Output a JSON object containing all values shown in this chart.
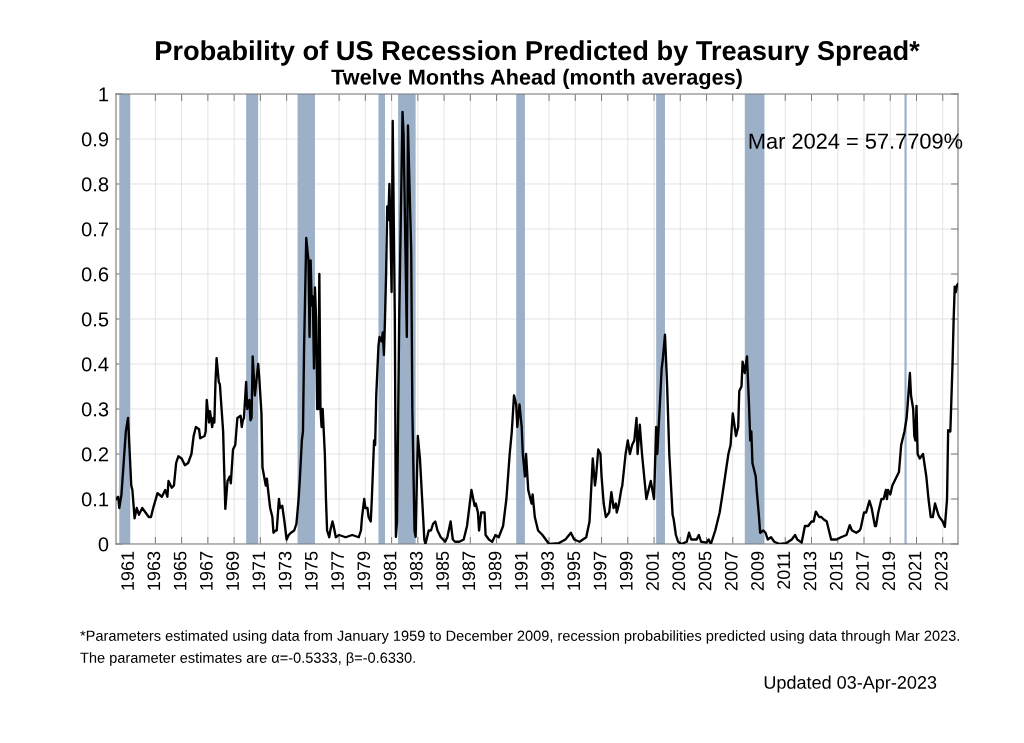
{
  "chart_data": {
    "type": "line",
    "title": "Probability of US Recession Predicted by Treasury Spread*",
    "subtitle": "Twelve Months Ahead (month averages)",
    "color": "#000000",
    "line_style": "solid",
    "grid": true,
    "xlim": [
      "1960-01",
      "2024-03"
    ],
    "ylim": [
      0,
      1
    ],
    "xticks": [
      "1961",
      "1963",
      "1965",
      "1967",
      "1969",
      "1971",
      "1973",
      "1975",
      "1977",
      "1979",
      "1981",
      "1983",
      "1985",
      "1987",
      "1989",
      "1991",
      "1993",
      "1995",
      "1997",
      "1999",
      "2001",
      "2003",
      "2005",
      "2007",
      "2009",
      "2011",
      "2013",
      "2015",
      "2017",
      "2019",
      "2021",
      "2023"
    ],
    "yticks": [
      0,
      0.1,
      0.2,
      0.3,
      0.4,
      0.5,
      0.6,
      0.7,
      0.8,
      0.9,
      1
    ],
    "bands": [
      {
        "axis": "x",
        "from": "1960-04",
        "to": "1961-02",
        "color": "#9cb0c8"
      },
      {
        "axis": "x",
        "from": "1969-12",
        "to": "1970-11",
        "color": "#9cb0c8"
      },
      {
        "axis": "x",
        "from": "1973-11",
        "to": "1975-03",
        "color": "#9cb0c8"
      },
      {
        "axis": "x",
        "from": "1980-01",
        "to": "1980-07",
        "color": "#9cb0c8"
      },
      {
        "axis": "x",
        "from": "1981-07",
        "to": "1982-11",
        "color": "#9cb0c8"
      },
      {
        "axis": "x",
        "from": "1990-07",
        "to": "1991-03",
        "color": "#9cb0c8"
      },
      {
        "axis": "x",
        "from": "2001-03",
        "to": "2001-11",
        "color": "#9cb0c8"
      },
      {
        "axis": "x",
        "from": "2007-12",
        "to": "2009-06",
        "color": "#9cb0c8"
      },
      {
        "axis": "x",
        "from": "2020-02",
        "to": "2020-04",
        "color": "#9cb0c8"
      }
    ],
    "annotations": [
      "Mar 2024 = 57.7709%",
      "*Parameters estimated using data from January 1959 to December 2009, recession probabilities predicted using data through Mar 2023.",
      "The parameter estimates are α=-0.5333, β=-0.6330.",
      "Updated 03-Apr-2023"
    ],
    "x": [
      "1960-01",
      "1960-03",
      "1960-04",
      "1960-06",
      "1960-08",
      "1960-10",
      "1960-12",
      "1961-03",
      "1961-04",
      "1961-06",
      "1961-08",
      "1961-10",
      "1962-01",
      "1962-04",
      "1962-07",
      "1962-09",
      "1962-11",
      "1963-03",
      "1963-07",
      "1963-10",
      "1963-12",
      "1964-01",
      "1964-04",
      "1964-06",
      "1964-08",
      "1964-10",
      "1965-01",
      "1965-04",
      "1965-07",
      "1965-10",
      "1965-12",
      "1966-02",
      "1966-05",
      "1966-06",
      "1966-10",
      "1966-11",
      "1966-12",
      "1967-02",
      "1967-03",
      "1967-05",
      "1967-06",
      "1967-07",
      "1967-08",
      "1967-09",
      "1967-11",
      "1967-12",
      "1968-03",
      "1968-04",
      "1968-05",
      "1968-07",
      "1968-09",
      "1968-10",
      "1968-12",
      "1969-02",
      "1969-04",
      "1969-07",
      "1969-08",
      "1969-09",
      "1969-10",
      "1969-12",
      "1970-01",
      "1970-03",
      "1970-04",
      "1970-05",
      "1970-06",
      "1970-08",
      "1970-11",
      "1970-12",
      "1971-02",
      "1971-03",
      "1971-06",
      "1971-07",
      "1971-09",
      "1971-10",
      "1971-12",
      "1972-01",
      "1972-03",
      "1972-04",
      "1972-06",
      "1972-07",
      "1972-09",
      "1972-11",
      "1973-01",
      "1973-03",
      "1973-05",
      "1973-08",
      "1973-10",
      "1973-12",
      "1974-01",
      "1974-03",
      "1974-04",
      "1974-05",
      "1974-07",
      "1974-09",
      "1974-10",
      "1974-11",
      "1974-12",
      "1975-01",
      "1975-02",
      "1975-03",
      "1975-04",
      "1975-05",
      "1975-06",
      "1975-07",
      "1975-08",
      "1975-09",
      "1975-10",
      "1975-12",
      "1976-01",
      "1976-02",
      "1976-04",
      "1976-05",
      "1976-07",
      "1976-08",
      "1976-10",
      "1977-01",
      "1977-07",
      "1978-01",
      "1978-07",
      "1978-09",
      "1978-10",
      "1978-12",
      "1979-01",
      "1979-03",
      "1979-04",
      "1979-06",
      "1979-07",
      "1979-09",
      "1979-10",
      "1979-11",
      "1980-01",
      "1980-02",
      "1980-04",
      "1980-05",
      "1980-06",
      "1980-07",
      "1980-08",
      "1980-09",
      "1980-10",
      "1980-11",
      "1980-12",
      "1981-01",
      "1981-02",
      "1981-04",
      "1981-05",
      "1981-06",
      "1981-08",
      "1981-11",
      "1981-12",
      "1982-03",
      "1982-04",
      "1982-07",
      "1982-08",
      "1982-10",
      "1982-11",
      "1983-01",
      "1983-03",
      "1983-05",
      "1983-07",
      "1983-08",
      "1983-11",
      "1984-01",
      "1984-03",
      "1984-05",
      "1984-07",
      "1984-10",
      "1985-02",
      "1985-04",
      "1985-07",
      "1985-09",
      "1985-11",
      "1986-03",
      "1986-07",
      "1986-10",
      "1987-02",
      "1987-05",
      "1987-06",
      "1987-08",
      "1987-09",
      "1987-11",
      "1988-02",
      "1988-03",
      "1988-06",
      "1988-09",
      "1988-12",
      "1989-03",
      "1989-07",
      "1989-10",
      "1990-01",
      "1990-03",
      "1990-05",
      "1990-07",
      "1990-08",
      "1990-10",
      "1990-12",
      "1991-01",
      "1991-03",
      "1991-04",
      "1991-06",
      "1991-08",
      "1991-09",
      "1991-10",
      "1991-12",
      "1992-03",
      "1992-07",
      "1992-10",
      "1993-01",
      "1993-10",
      "1994-04",
      "1994-09",
      "1994-12",
      "1995-05",
      "1995-11",
      "1996-02",
      "1996-05",
      "1996-07",
      "1996-08",
      "1996-10",
      "1996-12",
      "1997-01",
      "1997-03",
      "1997-05",
      "1997-08",
      "1997-10",
      "1997-12",
      "1998-02",
      "1998-03",
      "1998-05",
      "1998-07",
      "1998-08",
      "1998-11",
      "1999-01",
      "1999-03",
      "1999-05",
      "1999-07",
      "1999-09",
      "1999-10",
      "1999-12",
      "2000-02",
      "2000-04",
      "2000-06",
      "2000-07",
      "2000-10",
      "2001-01",
      "2001-03",
      "2001-04",
      "2001-08",
      "2001-09",
      "2001-11",
      "2002-01",
      "2002-03",
      "2002-06",
      "2002-07",
      "2002-09",
      "2002-11",
      "2003-02",
      "2003-07",
      "2003-09",
      "2003-11",
      "2004-04",
      "2004-06",
      "2004-08",
      "2005-01",
      "2005-03",
      "2005-05",
      "2005-09",
      "2006-01",
      "2006-03",
      "2006-06",
      "2006-09",
      "2006-11",
      "2007-01",
      "2007-04",
      "2007-06",
      "2007-07",
      "2007-09",
      "2007-10",
      "2007-12",
      "2008-02",
      "2008-04",
      "2008-05",
      "2008-06",
      "2008-07",
      "2008-10",
      "2008-11",
      "2009-01",
      "2009-02",
      "2009-05",
      "2009-07",
      "2009-09",
      "2009-12",
      "2010-03",
      "2010-08",
      "2011-02",
      "2011-07",
      "2011-10",
      "2011-12",
      "2012-04",
      "2012-07",
      "2012-10",
      "2013-01",
      "2013-03",
      "2013-05",
      "2013-08",
      "2013-10",
      "2013-12",
      "2014-03",
      "2014-05",
      "2014-07",
      "2014-12",
      "2015-04",
      "2015-09",
      "2015-12",
      "2016-02",
      "2016-06",
      "2016-09",
      "2016-10",
      "2017-01",
      "2017-03",
      "2017-06",
      "2017-08",
      "2017-11",
      "2017-12",
      "2018-02",
      "2018-05",
      "2018-07",
      "2018-09",
      "2018-10",
      "2018-11",
      "2019-01",
      "2019-03",
      "2019-07",
      "2019-09",
      "2019-11",
      "2020-02",
      "2020-04",
      "2020-05",
      "2020-07",
      "2020-08",
      "2020-10",
      "2020-11",
      "2020-12",
      "2021-01",
      "2021-02",
      "2021-04",
      "2021-07",
      "2021-10",
      "2021-12",
      "2022-02",
      "2022-04",
      "2022-06",
      "2022-09",
      "2022-10",
      "2023-01",
      "2023-03",
      "2023-05",
      "2023-06",
      "2023-08",
      "2023-10",
      "2023-11",
      "2023-12",
      "2024-01",
      "2024-02",
      "2024-03"
    ],
    "values": [
      0.1,
      0.105,
      0.08,
      0.11,
      0.18,
      0.25,
      0.28,
      0.13,
      0.12,
      0.057,
      0.08,
      0.065,
      0.08,
      0.07,
      0.06,
      0.06,
      0.08,
      0.113,
      0.105,
      0.12,
      0.105,
      0.14,
      0.125,
      0.13,
      0.18,
      0.195,
      0.19,
      0.175,
      0.18,
      0.2,
      0.24,
      0.26,
      0.255,
      0.235,
      0.24,
      0.25,
      0.32,
      0.27,
      0.295,
      0.26,
      0.28,
      0.27,
      0.36,
      0.413,
      0.36,
      0.355,
      0.25,
      0.16,
      0.078,
      0.14,
      0.15,
      0.135,
      0.21,
      0.22,
      0.28,
      0.285,
      0.26,
      0.275,
      0.28,
      0.36,
      0.3,
      0.32,
      0.275,
      0.28,
      0.417,
      0.33,
      0.4,
      0.37,
      0.29,
      0.17,
      0.13,
      0.145,
      0.1,
      0.08,
      0.06,
      0.025,
      0.03,
      0.03,
      0.1,
      0.08,
      0.085,
      0.05,
      0.01,
      0.02,
      0.025,
      0.03,
      0.045,
      0.1,
      0.14,
      0.23,
      0.25,
      0.43,
      0.68,
      0.63,
      0.46,
      0.63,
      0.53,
      0.55,
      0.39,
      0.57,
      0.5,
      0.3,
      0.3,
      0.6,
      0.3,
      0.26,
      0.3,
      0.2,
      0.1,
      0.03,
      0.015,
      0.03,
      0.05,
      0.04,
      0.015,
      0.02,
      0.015,
      0.02,
      0.015,
      0.03,
      0.06,
      0.1,
      0.08,
      0.08,
      0.06,
      0.05,
      0.1,
      0.23,
      0.22,
      0.33,
      0.44,
      0.46,
      0.45,
      0.47,
      0.42,
      0.5,
      0.6,
      0.75,
      0.72,
      0.8,
      0.7,
      0.56,
      0.94,
      0.5,
      0.016,
      0.05,
      0.5,
      0.96,
      0.91,
      0.46,
      0.93,
      0.65,
      0.3,
      0.03,
      0.016,
      0.24,
      0.19,
      0.1,
      0.01,
      0.0,
      0.03,
      0.03,
      0.045,
      0.05,
      0.03,
      0.015,
      0.005,
      0.015,
      0.05,
      0.01,
      0.005,
      0.005,
      0.01,
      0.04,
      0.12,
      0.085,
      0.09,
      0.07,
      0.03,
      0.07,
      0.07,
      0.02,
      0.01,
      0.005,
      0.02,
      0.015,
      0.04,
      0.1,
      0.2,
      0.25,
      0.33,
      0.31,
      0.26,
      0.31,
      0.26,
      0.2,
      0.15,
      0.2,
      0.12,
      0.1,
      0.09,
      0.11,
      0.06,
      0.03,
      0.02,
      0.01,
      0.0,
      0.002,
      0.01,
      0.025,
      0.01,
      0.005,
      0.015,
      0.05,
      0.19,
      0.13,
      0.15,
      0.21,
      0.2,
      0.15,
      0.09,
      0.06,
      0.07,
      0.115,
      0.08,
      0.09,
      0.07,
      0.09,
      0.12,
      0.13,
      0.2,
      0.23,
      0.2,
      0.22,
      0.23,
      0.28,
      0.2,
      0.265,
      0.2,
      0.15,
      0.1,
      0.11,
      0.14,
      0.1,
      0.26,
      0.2,
      0.39,
      0.41,
      0.465,
      0.35,
      0.2,
      0.065,
      0.055,
      0.02,
      0.005,
      0.0,
      0.005,
      0.025,
      0.01,
      0.01,
      0.02,
      0.005,
      0.003,
      0.01,
      0.0,
      0.03,
      0.07,
      0.1,
      0.15,
      0.2,
      0.22,
      0.29,
      0.24,
      0.26,
      0.34,
      0.35,
      0.405,
      0.38,
      0.417,
      0.3,
      0.23,
      0.25,
      0.18,
      0.15,
      0.116,
      0.06,
      0.025,
      0.03,
      0.025,
      0.01,
      0.015,
      0.005,
      0.0,
      0.002,
      0.01,
      0.02,
      0.01,
      0.003,
      0.04,
      0.04,
      0.05,
      0.05,
      0.072,
      0.06,
      0.06,
      0.055,
      0.05,
      0.03,
      0.01,
      0.01,
      0.015,
      0.02,
      0.042,
      0.03,
      0.025,
      0.03,
      0.035,
      0.07,
      0.07,
      0.096,
      0.08,
      0.04,
      0.04,
      0.07,
      0.1,
      0.1,
      0.12,
      0.1,
      0.12,
      0.11,
      0.13,
      0.15,
      0.16,
      0.22,
      0.25,
      0.28,
      0.31,
      0.38,
      0.33,
      0.3,
      0.24,
      0.23,
      0.307,
      0.2,
      0.19,
      0.2,
      0.15,
      0.1,
      0.06,
      0.06,
      0.09,
      0.065,
      0.06,
      0.05,
      0.038,
      0.1,
      0.253,
      0.25,
      0.4,
      0.5,
      0.572,
      0.56,
      0.575,
      0.577709
    ]
  }
}
